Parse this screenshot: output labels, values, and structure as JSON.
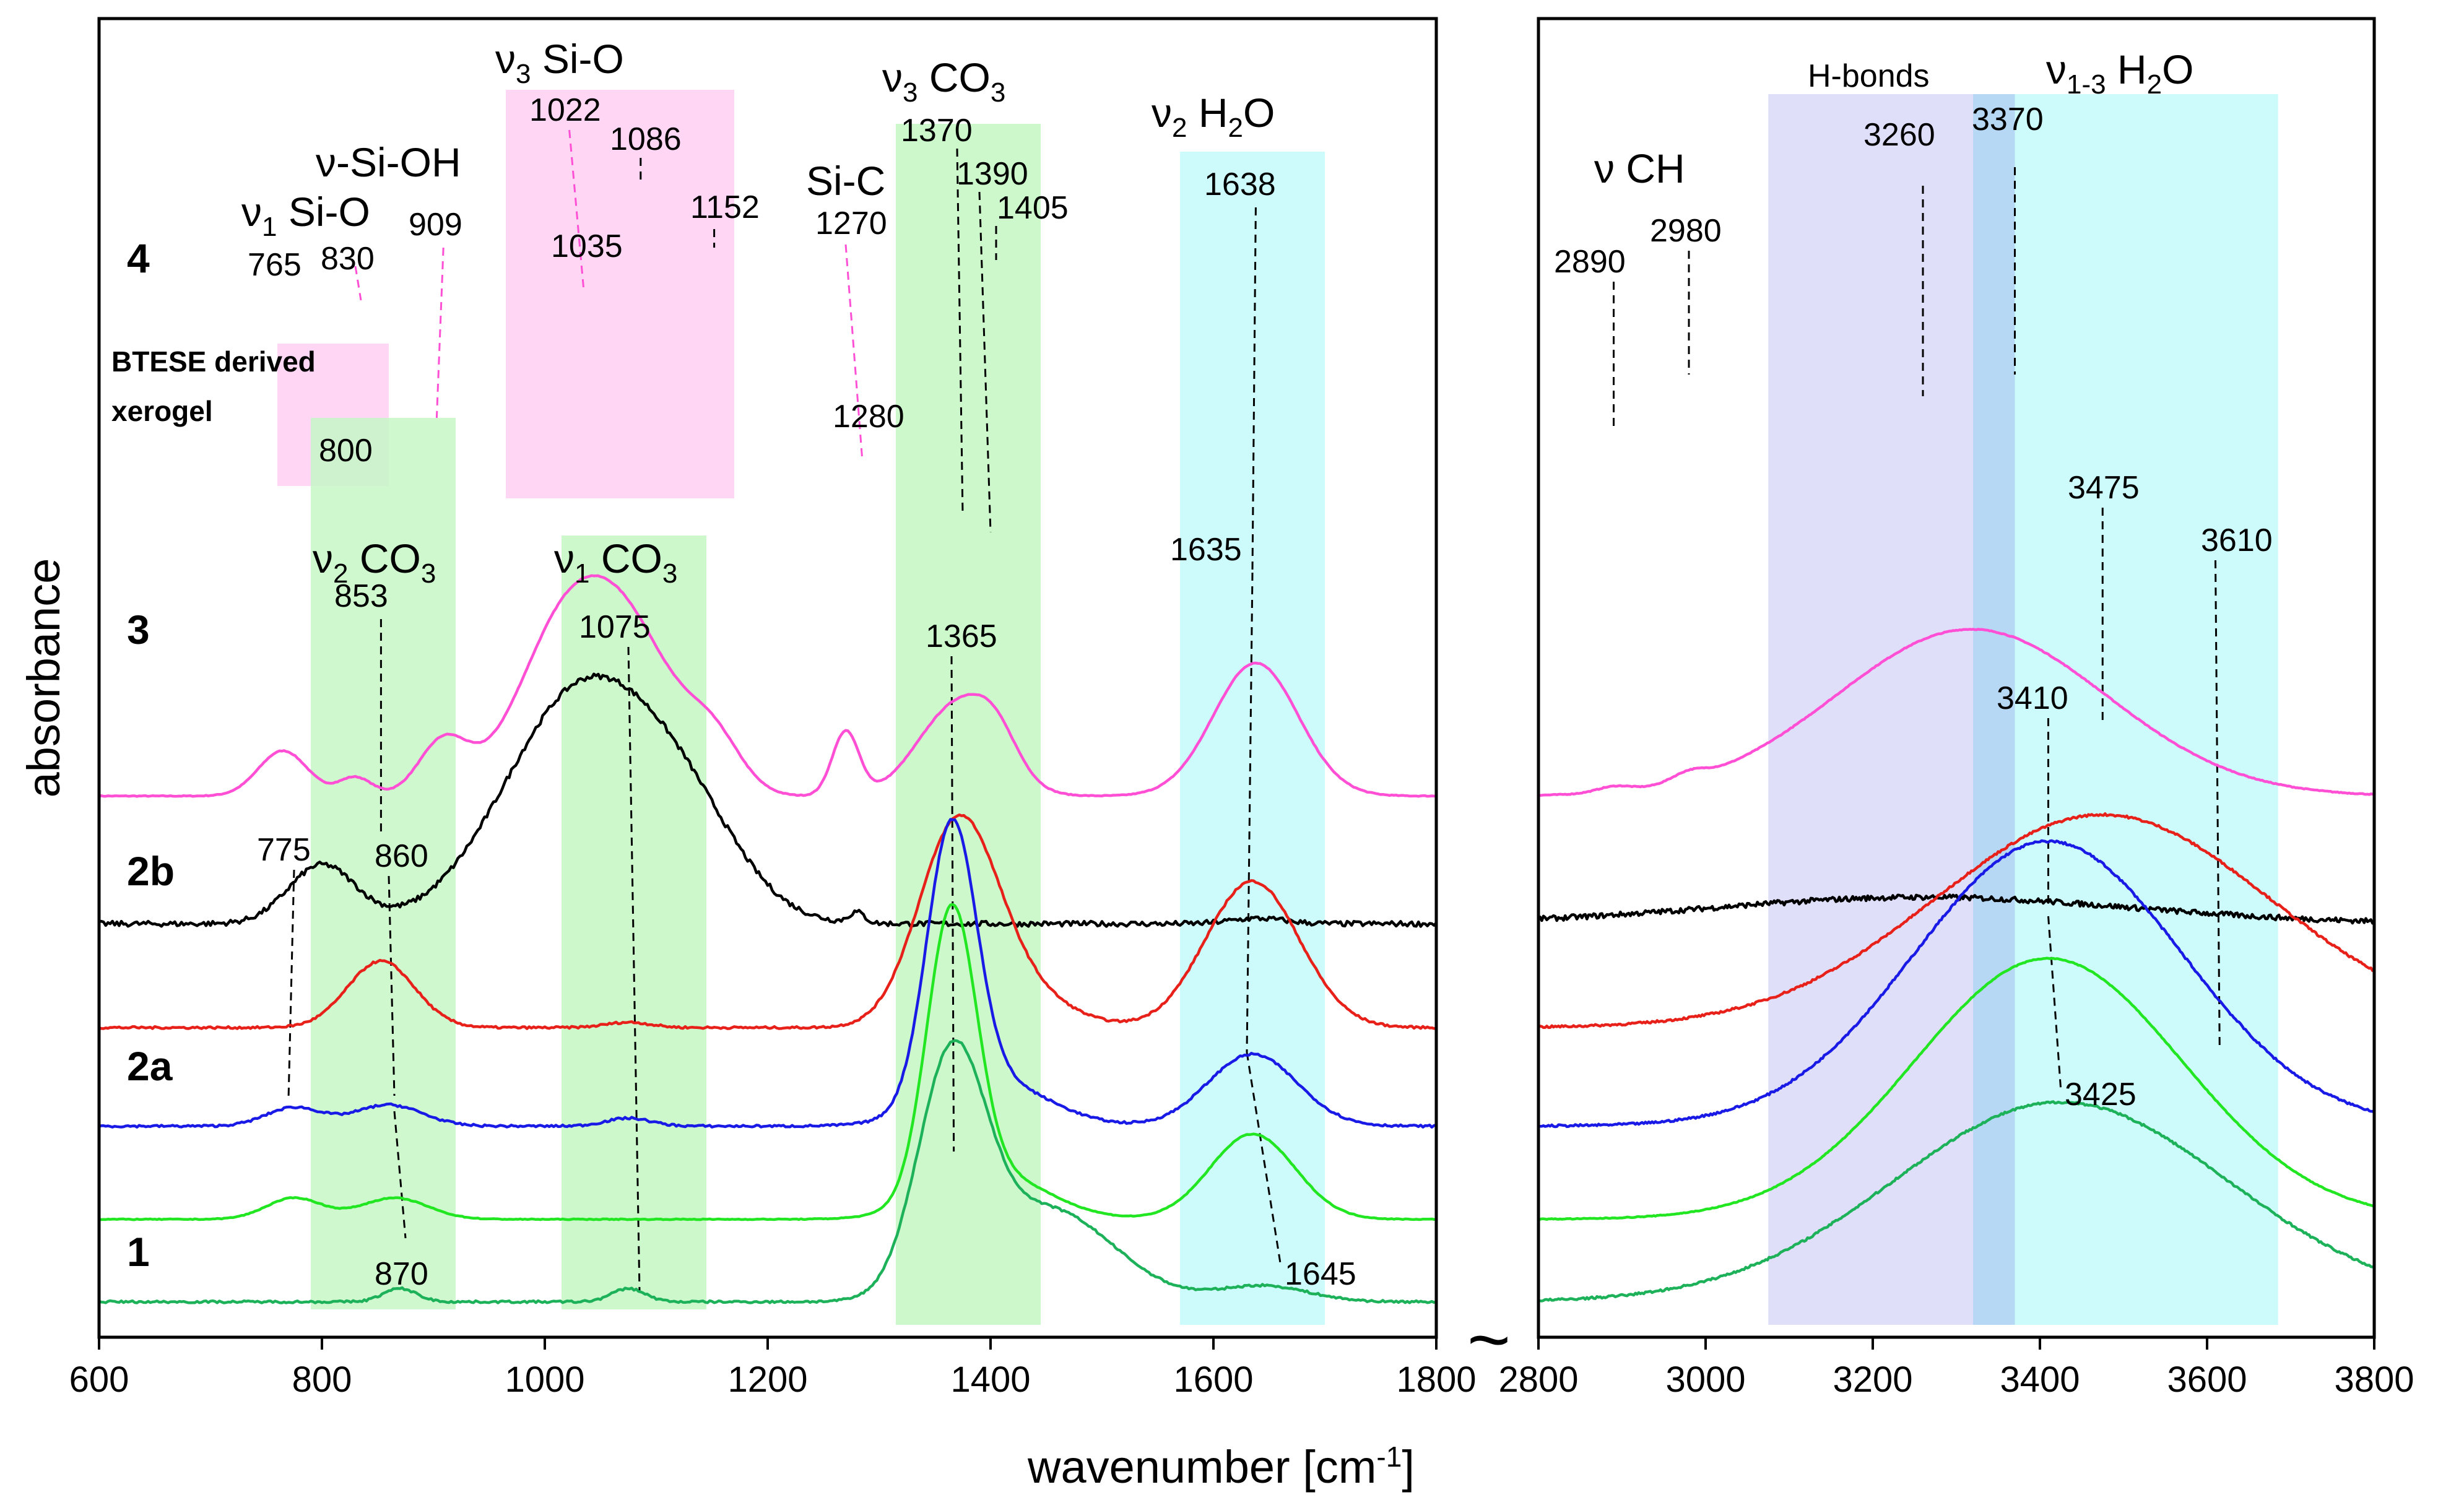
{
  "chart_data": {
    "type": "line",
    "xlabel": "wavenumber [cm",
    "xlabel_sup": "-1",
    "xlabel_end": "]",
    "ylabel": "absorbance",
    "axis_break_symbol": "~",
    "panels": [
      {
        "name": "left",
        "xlim": [
          600,
          1800
        ],
        "ticks": [
          600,
          800,
          1000,
          1200,
          1400,
          1600,
          1800
        ]
      },
      {
        "name": "right",
        "xlim": [
          2800,
          3800
        ],
        "ticks": [
          2800,
          3000,
          3200,
          3400,
          3600,
          3800
        ]
      }
    ],
    "sample_labels": [
      "4",
      "BTESE derived",
      "xerogel",
      "3",
      "2b",
      "2a",
      "1"
    ],
    "series": [
      {
        "name": "4",
        "color": "#ff4fd4",
        "baseline": 1.94,
        "peaks": [
          [
            765,
            0.17,
            22
          ],
          [
            830,
            0.07,
            15
          ],
          [
            909,
            0.2,
            22
          ],
          [
            1022,
            0.66,
            45
          ],
          [
            1086,
            0.42,
            40
          ],
          [
            1152,
            0.18,
            25
          ],
          [
            1270,
            0.24,
            12
          ],
          [
            1370,
            0.34,
            35
          ],
          [
            1405,
            0.12,
            20
          ],
          [
            1638,
            0.5,
            38
          ]
        ],
        "peaks_right": [
          [
            2890,
            0.02,
            20
          ],
          [
            2980,
            0.03,
            20
          ],
          [
            3260,
            0.32,
            150
          ],
          [
            3370,
            0.35,
            150
          ]
        ]
      },
      {
        "name": "BTESE derived xerogel",
        "color": "#000000",
        "baseline": 1.46,
        "peaks": [
          [
            800,
            0.22,
            30
          ],
          [
            1035,
            0.88,
            70
          ],
          [
            1130,
            0.25,
            50
          ],
          [
            1280,
            0.04,
            7
          ],
          [
            1640,
            0.02,
            25
          ]
        ],
        "peaks_right": [
          [
            3260,
            0.1,
            250
          ]
        ]
      },
      {
        "name": "3",
        "color": "#e8201a",
        "baseline": 1.07,
        "peaks": [
          [
            853,
            0.25,
            30
          ],
          [
            1075,
            0.02,
            20
          ],
          [
            1370,
            0.72,
            35
          ],
          [
            1420,
            0.14,
            45
          ],
          [
            1635,
            0.55,
            42
          ]
        ],
        "peaks_right": [
          [
            3475,
            0.8,
            200
          ]
        ]
      },
      {
        "name": "2b",
        "color": "#1a1ae6",
        "baseline": 0.7,
        "peaks": [
          [
            775,
            0.07,
            25
          ],
          [
            860,
            0.08,
            30
          ],
          [
            1075,
            0.03,
            20
          ],
          [
            1365,
            1.02,
            22
          ],
          [
            1400,
            0.17,
            50
          ],
          [
            1635,
            0.27,
            40
          ]
        ],
        "peaks_right": [
          [
            3410,
            1.07,
            160
          ]
        ]
      },
      {
        "name": "2a",
        "color": "#22e622",
        "baseline": 0.35,
        "peaks": [
          [
            775,
            0.08,
            25
          ],
          [
            865,
            0.08,
            30
          ],
          [
            1365,
            1.05,
            22
          ],
          [
            1400,
            0.17,
            50
          ],
          [
            1635,
            0.32,
            38
          ]
        ],
        "peaks_right": [
          [
            3410,
            0.98,
            160
          ]
        ]
      },
      {
        "name": "1",
        "color": "#1db25a",
        "baseline": 0.04,
        "peaks": [
          [
            870,
            0.05,
            15
          ],
          [
            1075,
            0.05,
            15
          ],
          [
            1365,
            0.85,
            30
          ],
          [
            1450,
            0.35,
            60
          ],
          [
            1645,
            0.06,
            40
          ]
        ],
        "peaks_right": [
          [
            3425,
            0.75,
            200
          ]
        ]
      }
    ],
    "bands": [
      {
        "label": "v3 Si-O",
        "color": "#ffd2f3",
        "x": [
          965,
          1170
        ]
      },
      {
        "label": "v1 Si-O",
        "color": "#ffd2f3",
        "x": [
          760,
          860
        ]
      },
      {
        "label": "v2 CO3",
        "color": "#c7f7c7",
        "x": [
          790,
          920
        ]
      },
      {
        "label": "v1 CO3",
        "color": "#c7f7c7",
        "x": [
          1015,
          1145
        ]
      },
      {
        "label": "v3 CO3",
        "color": "#c7f7c7",
        "x": [
          1315,
          1445
        ]
      },
      {
        "label": "v2 H2O",
        "color": "#c8fafb",
        "x": [
          1570,
          1700
        ]
      },
      {
        "label": "H-bonds",
        "color": "#dcdcfa",
        "x": [
          3075,
          3370
        ]
      },
      {
        "label": "v1-3 H2O",
        "color": "#c8fafb",
        "x": [
          3320,
          3685
        ]
      }
    ],
    "band_labels": {
      "v3_SiO": {
        "sym": "ν",
        "sub": "3",
        "txt": " Si-O"
      },
      "v_SiOH": {
        "txt": "ν-Si-OH"
      },
      "v1_SiO": {
        "sym": "ν",
        "sub": "1",
        "txt": " Si-O"
      },
      "SiC": {
        "txt": "Si-C"
      },
      "v3_CO3": {
        "sym": "ν",
        "sub": "3",
        "txt": " CO",
        "sub2": "3"
      },
      "v2_H2O": {
        "sym": "ν",
        "sub": "2",
        "txt": " H",
        "sub2": "2",
        "txt2": "O"
      },
      "v2_CO3": {
        "sym": "ν",
        "sub": "2",
        "txt": " CO",
        "sub2": "3"
      },
      "v1_CO3": {
        "sym": "ν",
        "sub": "1",
        "txt": " CO",
        "sub2": "3"
      },
      "vCH": {
        "txt": "ν CH"
      },
      "Hbonds": {
        "txt": "H-bonds"
      },
      "v13_H2O": {
        "sym": "ν",
        "sub": "1-3",
        "txt": " H",
        "sub2": "2",
        "txt2": "O"
      }
    },
    "peak_labels": [
      "765",
      "830",
      "909",
      "1022",
      "1086",
      "1152",
      "1035",
      "1270",
      "1370",
      "1390",
      "1405",
      "1638",
      "800",
      "1280",
      "853",
      "1075",
      "1365",
      "1635",
      "775",
      "860",
      "870",
      "1645",
      "2890",
      "2980",
      "3260",
      "3370",
      "3475",
      "3610",
      "3410",
      "3425"
    ]
  }
}
